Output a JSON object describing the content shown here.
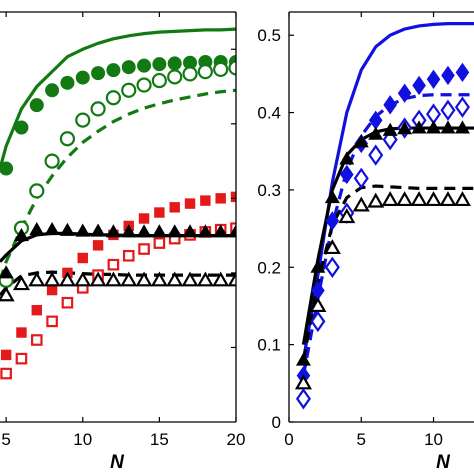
{
  "colors": {
    "green": "#137a13",
    "red": "#e41a1a",
    "black": "#000000",
    "blue": "#1010e0"
  },
  "chart_data": [
    {
      "type": "scatter",
      "panel": "left",
      "xlabel": "N",
      "ylabel": "",
      "xlim": [
        4.6,
        20
      ],
      "xticks": [
        "5",
        "10",
        "15",
        "20"
      ],
      "ylim": [
        0,
        0.55
      ],
      "y_tick_labels_visible": false,
      "grid": false,
      "series": [
        {
          "color": "green",
          "style": "solid",
          "marker": "none",
          "x": [
            4.6,
            5,
            6,
            7,
            8,
            9,
            10,
            11,
            12,
            13,
            14,
            15,
            16,
            17,
            18,
            19,
            20
          ],
          "y": [
            0.34,
            0.37,
            0.42,
            0.45,
            0.47,
            0.49,
            0.5,
            0.508,
            0.514,
            0.518,
            0.521,
            0.523,
            0.524,
            0.525,
            0.526,
            0.526,
            0.527
          ]
        },
        {
          "color": "green",
          "style": "none",
          "marker": "filled-circle",
          "x": [
            5,
            6,
            7,
            8,
            9,
            10,
            11,
            12,
            13,
            14,
            15,
            16,
            17,
            18,
            19,
            20
          ],
          "y": [
            0.34,
            0.395,
            0.425,
            0.445,
            0.455,
            0.462,
            0.468,
            0.472,
            0.476,
            0.478,
            0.48,
            0.481,
            0.482,
            0.483,
            0.483,
            0.483
          ]
        },
        {
          "color": "green",
          "style": "none",
          "marker": "open-circle",
          "x": [
            5,
            6,
            7,
            8,
            9,
            10,
            11,
            12,
            13,
            14,
            15,
            16,
            17,
            18,
            19,
            20
          ],
          "y": [
            0.19,
            0.26,
            0.31,
            0.35,
            0.38,
            0.405,
            0.42,
            0.435,
            0.445,
            0.452,
            0.458,
            0.463,
            0.467,
            0.47,
            0.473,
            0.475
          ]
        },
        {
          "color": "green",
          "style": "dashed",
          "marker": "none",
          "x": [
            4.6,
            5,
            6,
            7,
            8,
            9,
            10,
            11,
            12,
            13,
            14,
            15,
            16,
            17,
            18,
            19,
            20
          ],
          "y": [
            0.19,
            0.215,
            0.26,
            0.3,
            0.33,
            0.355,
            0.375,
            0.39,
            0.403,
            0.413,
            0.421,
            0.427,
            0.432,
            0.436,
            0.44,
            0.443,
            0.445
          ]
        },
        {
          "color": "red",
          "style": "none",
          "marker": "filled-square",
          "x": [
            5,
            6,
            7,
            8,
            9,
            10,
            11,
            12,
            13,
            14,
            15,
            16,
            17,
            18,
            19,
            20
          ],
          "y": [
            0.09,
            0.12,
            0.15,
            0.177,
            0.2,
            0.22,
            0.237,
            0.251,
            0.263,
            0.273,
            0.281,
            0.288,
            0.293,
            0.297,
            0.3,
            0.302
          ]
        },
        {
          "color": "red",
          "style": "none",
          "marker": "open-square",
          "x": [
            5,
            6,
            7,
            8,
            9,
            10,
            11,
            12,
            13,
            14,
            15,
            16,
            17,
            18,
            19,
            20
          ],
          "y": [
            0.065,
            0.085,
            0.11,
            0.135,
            0.16,
            0.18,
            0.197,
            0.211,
            0.223,
            0.232,
            0.24,
            0.246,
            0.251,
            0.255,
            0.258,
            0.26
          ]
        },
        {
          "color": "black",
          "style": "solid",
          "marker": "none",
          "x": [
            4.6,
            5,
            6,
            7,
            8,
            9,
            10,
            11,
            12,
            13,
            14,
            15,
            16,
            17,
            18,
            19,
            20
          ],
          "y": [
            0.215,
            0.224,
            0.243,
            0.251,
            0.253,
            0.253,
            0.252,
            0.251,
            0.251,
            0.25,
            0.25,
            0.25,
            0.25,
            0.25,
            0.25,
            0.25,
            0.25
          ]
        },
        {
          "color": "black",
          "style": "none",
          "marker": "filled-triangle",
          "x": [
            5,
            6,
            7,
            8,
            9,
            10,
            11,
            12,
            13,
            14,
            15,
            16,
            17,
            18,
            19,
            20
          ],
          "y": [
            0.2,
            0.25,
            0.258,
            0.258,
            0.257,
            0.256,
            0.256,
            0.255,
            0.255,
            0.255,
            0.255,
            0.255,
            0.255,
            0.255,
            0.255,
            0.255
          ]
        },
        {
          "color": "black",
          "style": "dashed",
          "marker": "none",
          "x": [
            4.6,
            5,
            6,
            7,
            8,
            9,
            10,
            11,
            12,
            13,
            14,
            15,
            16,
            17,
            18,
            19,
            20
          ],
          "y": [
            0.17,
            0.18,
            0.196,
            0.2,
            0.201,
            0.2,
            0.199,
            0.198,
            0.198,
            0.197,
            0.197,
            0.197,
            0.197,
            0.197,
            0.197,
            0.197,
            0.197
          ]
        },
        {
          "color": "black",
          "style": "none",
          "marker": "open-triangle",
          "x": [
            5,
            6,
            7,
            8,
            9,
            10,
            11,
            12,
            13,
            14,
            15,
            16,
            17,
            18,
            19,
            20
          ],
          "y": [
            0.17,
            0.185,
            0.19,
            0.19,
            0.19,
            0.19,
            0.19,
            0.19,
            0.19,
            0.19,
            0.19,
            0.19,
            0.19,
            0.19,
            0.19,
            0.19
          ]
        }
      ]
    },
    {
      "type": "scatter",
      "panel": "right",
      "xlabel": "N",
      "ylabel": "",
      "xlim": [
        0,
        12.8
      ],
      "xticks": [
        "0",
        "5",
        "10"
      ],
      "ylim": [
        0,
        0.53
      ],
      "yticks": [
        "0",
        "0.1",
        "0.2",
        "0.3",
        "0.4",
        "0.5"
      ],
      "grid": false,
      "series": [
        {
          "color": "blue",
          "style": "solid",
          "marker": "none",
          "x": [
            1,
            2,
            3,
            4,
            5,
            6,
            7,
            8,
            9,
            10,
            11,
            12,
            12.8
          ],
          "y": [
            0.08,
            0.19,
            0.31,
            0.4,
            0.455,
            0.485,
            0.5,
            0.508,
            0.512,
            0.514,
            0.515,
            0.515,
            0.515
          ]
        },
        {
          "color": "blue",
          "style": "none",
          "marker": "filled-diamond",
          "x": [
            1,
            2,
            3,
            4,
            5,
            6,
            7,
            8,
            9,
            10,
            11,
            12
          ],
          "y": [
            0.06,
            0.17,
            0.26,
            0.32,
            0.36,
            0.39,
            0.41,
            0.425,
            0.435,
            0.443,
            0.448,
            0.452
          ]
        },
        {
          "color": "blue",
          "style": "dashed",
          "marker": "none",
          "x": [
            1,
            2,
            3,
            4,
            5,
            6,
            7,
            8,
            9,
            10,
            11,
            12,
            12.8
          ],
          "y": [
            0.06,
            0.16,
            0.255,
            0.325,
            0.37,
            0.395,
            0.41,
            0.418,
            0.422,
            0.423,
            0.423,
            0.423,
            0.423
          ]
        },
        {
          "color": "blue",
          "style": "none",
          "marker": "open-diamond",
          "x": [
            1,
            2,
            3,
            4,
            5,
            6,
            7,
            8,
            9,
            10,
            11,
            12
          ],
          "y": [
            0.03,
            0.13,
            0.2,
            0.27,
            0.315,
            0.345,
            0.365,
            0.38,
            0.39,
            0.398,
            0.403,
            0.407
          ]
        },
        {
          "color": "black",
          "style": "solid",
          "marker": "none",
          "x": [
            1,
            2,
            3,
            4,
            5,
            6,
            7,
            8,
            9,
            10,
            11,
            12,
            12.8
          ],
          "y": [
            0.1,
            0.21,
            0.3,
            0.345,
            0.365,
            0.375,
            0.379,
            0.38,
            0.38,
            0.38,
            0.38,
            0.38,
            0.38
          ]
        },
        {
          "color": "black",
          "style": "none",
          "marker": "filled-triangle",
          "x": [
            1,
            2,
            3,
            4,
            5,
            6,
            7,
            8,
            9,
            10,
            11,
            12
          ],
          "y": [
            0.08,
            0.2,
            0.29,
            0.34,
            0.362,
            0.372,
            0.377,
            0.379,
            0.38,
            0.38,
            0.38,
            0.38
          ]
        },
        {
          "color": "black",
          "style": "dashed",
          "marker": "none",
          "x": [
            1,
            2,
            3,
            4,
            5,
            6,
            7,
            8,
            9,
            10,
            11,
            12,
            12.8
          ],
          "y": [
            0.08,
            0.18,
            0.255,
            0.29,
            0.303,
            0.305,
            0.304,
            0.303,
            0.302,
            0.302,
            0.302,
            0.302,
            0.302
          ]
        },
        {
          "color": "black",
          "style": "none",
          "marker": "open-triangle",
          "x": [
            1,
            2,
            3,
            4,
            5,
            6,
            7,
            8,
            9,
            10,
            11,
            12
          ],
          "y": [
            0.05,
            0.15,
            0.225,
            0.265,
            0.28,
            0.285,
            0.287,
            0.287,
            0.287,
            0.287,
            0.287,
            0.287
          ]
        }
      ]
    }
  ]
}
